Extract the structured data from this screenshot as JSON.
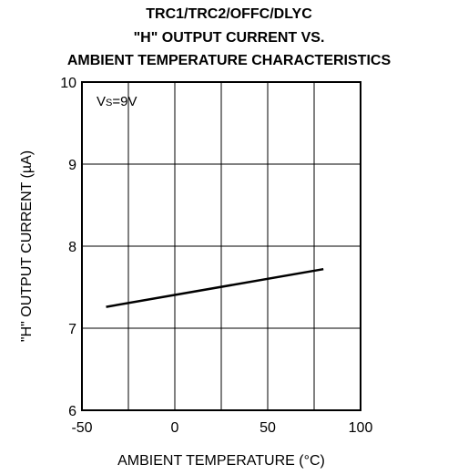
{
  "chart_data": {
    "type": "line",
    "title_lines": [
      "TRC1/TRC2/OFFC/DLYC",
      "\"H\" OUTPUT CURRENT VS.",
      "AMBIENT TEMPERATURE CHARACTERISTICS"
    ],
    "xlabel": "AMBIENT TEMPERATURE (°C)",
    "ylabel": "\"H\" OUTPUT CURRENT (µA)",
    "xlim": [
      -50,
      100
    ],
    "ylim": [
      6,
      10
    ],
    "xticks": [
      -50,
      0,
      50,
      100
    ],
    "yticks": [
      6,
      7,
      8,
      9,
      10
    ],
    "x_gridlines": [
      -25,
      0,
      25,
      50,
      75
    ],
    "y_gridlines": [
      7,
      8,
      9
    ],
    "grid": true,
    "condition": {
      "prefix": "V",
      "subscript": "S",
      "suffix": "=9V"
    },
    "series": [
      {
        "x": [
          -37,
          80
        ],
        "y": [
          7.26,
          7.72
        ],
        "color": "#000000"
      }
    ]
  }
}
